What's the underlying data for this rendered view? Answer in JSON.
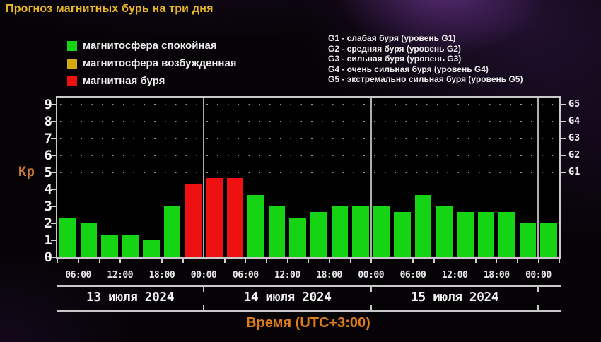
{
  "title": "Прогноз магнитных бурь на три дня",
  "legend": {
    "items": [
      {
        "label": "магнитосфера спокойная",
        "status": "quiet",
        "color": "#14d414"
      },
      {
        "label": "магнитосфера возбужденная",
        "status": "excited",
        "color": "#d3a712"
      },
      {
        "label": "магнитная буря",
        "status": "storm",
        "color": "#ee1111"
      }
    ]
  },
  "g_scale_legend": {
    "items": [
      "G1 - слабая буря (уровень G1)",
      "G2 - средняя буря (уровень G2)",
      "G3 - сильная буря (уровень G3)",
      "G4 - очень сильная буря (уровень G4)",
      "G5 - экстремально сильная буря (уровень G5)"
    ]
  },
  "axes": {
    "y_label": "Kp",
    "y_ticks": [
      0,
      1,
      2,
      3,
      4,
      5,
      6,
      7,
      8,
      9
    ],
    "right_labels": [
      {
        "label": "G5",
        "kp": 9
      },
      {
        "label": "G4",
        "kp": 8
      },
      {
        "label": "G3",
        "kp": 7
      },
      {
        "label": "G2",
        "kp": 6
      },
      {
        "label": "G1",
        "kp": 5
      }
    ],
    "x_axis_title": "Время (UTC+3:00)"
  },
  "chart_data": {
    "type": "bar",
    "ylabel": "Kp",
    "ylim": [
      0,
      9.4
    ],
    "y_ticks": [
      0,
      1,
      2,
      3,
      4,
      5,
      6,
      7,
      8,
      9
    ],
    "grid_dot_levels": [
      5,
      6,
      7,
      8,
      9
    ],
    "interval_hours": 3,
    "x_tick_times": [
      "06:00",
      "12:00",
      "18:00",
      "00:00"
    ],
    "day_labels": [
      "13 июля 2024",
      "14 июля 2024",
      "15 июля 2024"
    ],
    "bars_per_day": [
      7,
      8,
      8,
      1
    ],
    "values": [
      2.33,
      2.0,
      1.33,
      1.33,
      1.0,
      3.0,
      4.33,
      4.67,
      4.67,
      3.67,
      3.0,
      2.33,
      2.67,
      3.0,
      3.0,
      3.0,
      2.67,
      3.67,
      3.0,
      2.67,
      2.67,
      2.67,
      2.0,
      2.0
    ],
    "storm_bar_indices": [
      6,
      7,
      8
    ],
    "status_colors": {
      "quiet": "#14d414",
      "excited": "#d3a712",
      "storm": "#ee1111"
    },
    "legend_position": "top-left",
    "x_axis_title": "Время (UTC+3:00)"
  }
}
